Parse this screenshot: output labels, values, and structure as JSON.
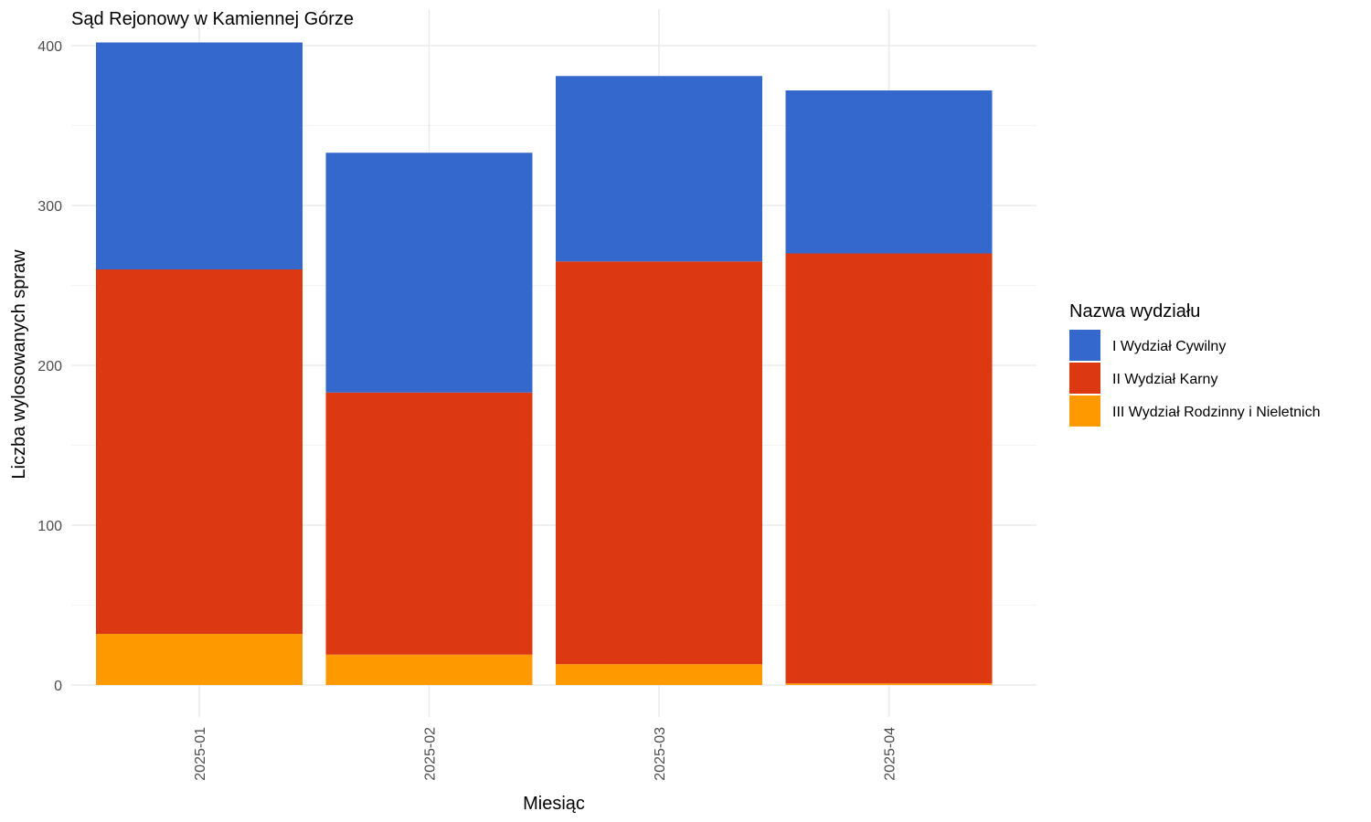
{
  "chart_data": {
    "type": "bar",
    "stacked": true,
    "title": "Sąd Rejonowy w Kamiennej Górze",
    "xlabel": "Miesiąc",
    "ylabel": "Liczba wylosowanych spraw",
    "categories": [
      "2025-01",
      "2025-02",
      "2025-03",
      "2025-04"
    ],
    "ylim": [
      0,
      420
    ],
    "yticks": [
      0,
      100,
      200,
      300,
      400
    ],
    "grid": true,
    "legend": {
      "title": "Nazwa wydziału",
      "position": "right"
    },
    "series": [
      {
        "name": "I Wydział Cywilny",
        "color": "#3468CC",
        "values": [
          142,
          150,
          116,
          102
        ]
      },
      {
        "name": "II Wydział Karny",
        "color": "#DC3912",
        "values": [
          228,
          164,
          252,
          269
        ]
      },
      {
        "name": "III Wydział Rodzinny i Nieletnich",
        "color": "#FF9900",
        "values": [
          32,
          19,
          13,
          1
        ]
      }
    ]
  }
}
